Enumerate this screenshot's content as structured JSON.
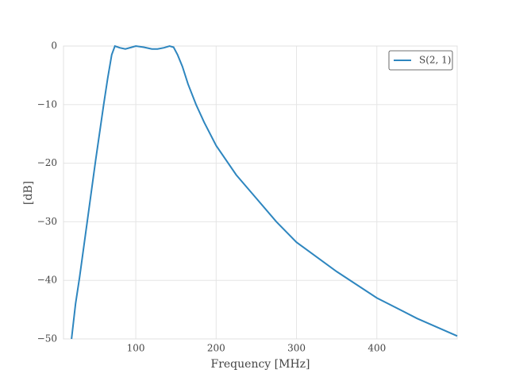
{
  "chart_data": {
    "type": "line",
    "xlabel": "Frequency [MHz]",
    "ylabel": "[dB]",
    "x": [
      20,
      25,
      30,
      40,
      50,
      60,
      65,
      70,
      74,
      80,
      87,
      95,
      100,
      110,
      120,
      127,
      135,
      142,
      147,
      152,
      158,
      165,
      175,
      185,
      200,
      225,
      250,
      275,
      300,
      350,
      400,
      450,
      500
    ],
    "series": [
      {
        "name": "S(2, 1)",
        "color": "#2e86bf",
        "values": [
          -50,
          -44,
          -39.5,
          -29.5,
          -19.5,
          -10,
          -5.5,
          -1.5,
          0,
          -0.3,
          -0.5,
          -0.2,
          0,
          -0.2,
          -0.5,
          -0.5,
          -0.3,
          0,
          -0.2,
          -1.5,
          -3.5,
          -6.5,
          -10,
          -13,
          -17,
          -22,
          -26,
          -30,
          -33.5,
          -38.5,
          -43,
          -46.5,
          -49.5
        ]
      }
    ],
    "xlim": [
      10,
      500
    ],
    "ylim": [
      -50,
      0
    ],
    "xticks": [
      100,
      200,
      300,
      400
    ],
    "yticks": [
      0,
      {
        "value": -10,
        "label": "−10"
      },
      {
        "value": -20,
        "label": "−20"
      },
      {
        "value": -30,
        "label": "−30"
      },
      {
        "value": -40,
        "label": "−40"
      },
      {
        "value": -50,
        "label": "−50"
      }
    ],
    "grid": true,
    "legend": "upper right"
  }
}
